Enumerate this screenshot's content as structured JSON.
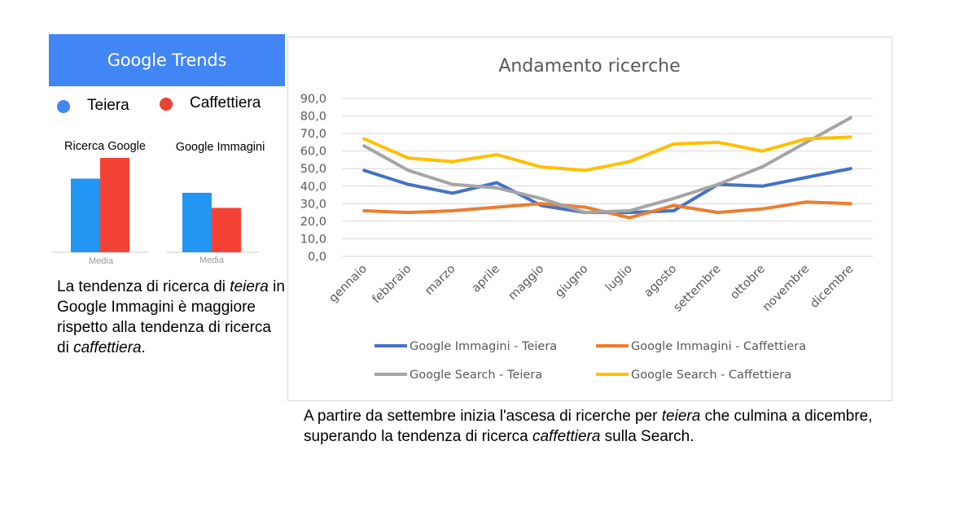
{
  "header": {
    "logo_text": "Google Trends",
    "color": "#4285f4"
  },
  "left_legend": [
    {
      "label": "Teiera",
      "color": "#4285f4"
    },
    {
      "label": "Caffettiera",
      "color": "#ea4335"
    }
  ],
  "mini_charts": [
    {
      "title": "Ricerca Google",
      "axis_label": "Media",
      "values": [
        {
          "name": "Teiera",
          "value": 0.78,
          "color": "#2196f3"
        },
        {
          "name": "Caffettiera",
          "value": 1.0,
          "color": "#f44336"
        }
      ]
    },
    {
      "title": "Google Immagini",
      "axis_label": "Media",
      "values": [
        {
          "name": "Teiera",
          "value": 0.63,
          "color": "#2196f3"
        },
        {
          "name": "Caffettiera",
          "value": 0.47,
          "color": "#f44336"
        }
      ]
    }
  ],
  "left_text": {
    "p1": "La tendenza di ricerca di ",
    "em1": "teiera",
    "p2": " in Google Immagini è maggiore rispetto alla tendenza di ricerca di ",
    "em2": "caffettiera",
    "p3": "."
  },
  "bottom_text": {
    "p1": "A partire da settembre inizia l'ascesa di ricerche per ",
    "em1": "teiera",
    "p2": " che culmina a dicembre, superando la tendenza di ricerca ",
    "em2": "caffettiera",
    "p3": " sulla Search."
  },
  "chart_data": {
    "type": "line",
    "title": "Andamento ricerche",
    "xlabel": "",
    "ylabel": "",
    "ylim": [
      0,
      90
    ],
    "yticks": [
      "0,0",
      "10,0",
      "20,0",
      "30,0",
      "40,0",
      "50,0",
      "60,0",
      "70,0",
      "80,0",
      "90,0"
    ],
    "grid": true,
    "legend_position": "bottom",
    "categories": [
      "gennaio",
      "febbraio",
      "marzo",
      "aprile",
      "maggio",
      "giugno",
      "luglio",
      "agosto",
      "settembre",
      "ottobre",
      "novembre",
      "dicembre"
    ],
    "series": [
      {
        "name": "Google Immagini - Teiera",
        "color": "#4472c4",
        "values": [
          49,
          41,
          36,
          42,
          29,
          25,
          25,
          26,
          41,
          40,
          45,
          50
        ]
      },
      {
        "name": "Google Immagini - Caffettiera",
        "color": "#ed7d31",
        "values": [
          26,
          25,
          26,
          28,
          30,
          28,
          22,
          29,
          25,
          27,
          31,
          30
        ]
      },
      {
        "name": "Google Search - Teiera",
        "color": "#a5a5a5",
        "values": [
          63,
          49,
          41,
          39,
          33,
          25,
          26,
          33,
          41,
          51,
          65,
          79
        ]
      },
      {
        "name": "Google Search - Caffettiera",
        "color": "#ffc000",
        "values": [
          67,
          56,
          54,
          58,
          51,
          49,
          54,
          64,
          65,
          60,
          67,
          68
        ]
      }
    ]
  }
}
